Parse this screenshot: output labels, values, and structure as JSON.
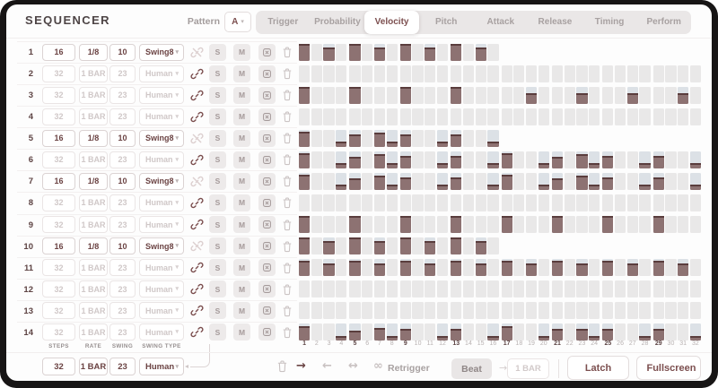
{
  "header": {
    "title": "SEQUENCER",
    "pattern_label": "Pattern",
    "pattern_value": "A",
    "tabs": [
      {
        "label": "Trigger",
        "selected": false
      },
      {
        "label": "Probability",
        "selected": false
      },
      {
        "label": "Velocity",
        "selected": true
      },
      {
        "label": "Pitch",
        "selected": false
      },
      {
        "label": "Attack",
        "selected": false
      },
      {
        "label": "Release",
        "selected": false
      },
      {
        "label": "Timing",
        "selected": false
      },
      {
        "label": "Perform",
        "selected": false
      }
    ]
  },
  "row_controls": {
    "solo": "S",
    "mute": "M"
  },
  "rows": [
    {
      "num": "1",
      "steps": "16",
      "rate": "1/8",
      "swing": "10",
      "swing_type": "Swing8",
      "linked": false
    },
    {
      "num": "2",
      "steps": "32",
      "rate": "1 BAR",
      "swing": "23",
      "swing_type": "Human",
      "linked": true
    },
    {
      "num": "3",
      "steps": "32",
      "rate": "1 BAR",
      "swing": "23",
      "swing_type": "Human",
      "linked": true
    },
    {
      "num": "4",
      "steps": "32",
      "rate": "1 BAR",
      "swing": "23",
      "swing_type": "Human",
      "linked": true
    },
    {
      "num": "5",
      "steps": "16",
      "rate": "1/8",
      "swing": "10",
      "swing_type": "Swing8",
      "linked": false
    },
    {
      "num": "6",
      "steps": "32",
      "rate": "1 BAR",
      "swing": "23",
      "swing_type": "Human",
      "linked": true
    },
    {
      "num": "7",
      "steps": "16",
      "rate": "1/8",
      "swing": "10",
      "swing_type": "Swing8",
      "linked": false
    },
    {
      "num": "8",
      "steps": "32",
      "rate": "1 BAR",
      "swing": "23",
      "swing_type": "Human",
      "linked": true
    },
    {
      "num": "9",
      "steps": "32",
      "rate": "1 BAR",
      "swing": "23",
      "swing_type": "Human",
      "linked": true
    },
    {
      "num": "10",
      "steps": "16",
      "rate": "1/8",
      "swing": "10",
      "swing_type": "Swing8",
      "linked": false
    },
    {
      "num": "11",
      "steps": "32",
      "rate": "1 BAR",
      "swing": "23",
      "swing_type": "Human",
      "linked": true
    },
    {
      "num": "12",
      "steps": "32",
      "rate": "1 BAR",
      "swing": "23",
      "swing_type": "Human",
      "linked": true
    },
    {
      "num": "13",
      "steps": "32",
      "rate": "1 BAR",
      "swing": "23",
      "swing_type": "Human",
      "linked": true
    },
    {
      "num": "14",
      "steps": "32",
      "rate": "1 BAR",
      "swing": "23",
      "swing_type": "Human",
      "linked": true
    }
  ],
  "grid": {
    "step_numbers": [
      1,
      2,
      3,
      4,
      5,
      6,
      7,
      8,
      9,
      10,
      11,
      12,
      13,
      14,
      15,
      16,
      17,
      18,
      19,
      20,
      21,
      22,
      23,
      24,
      25,
      26,
      27,
      28,
      29,
      30,
      31,
      32
    ],
    "bold_steps": [
      1,
      5,
      9,
      13,
      17,
      21,
      25,
      29
    ],
    "rows": [
      {
        "velocities": [
          100,
          0,
          78,
          0,
          100,
          0,
          78,
          0,
          100,
          0,
          78,
          0,
          100,
          0,
          78,
          0
        ]
      },
      {
        "velocities": [
          0,
          0,
          0,
          0,
          0,
          0,
          0,
          0,
          0,
          0,
          0,
          0,
          0,
          0,
          0,
          0,
          0,
          0,
          0,
          0,
          0,
          0,
          0,
          0,
          0,
          0,
          0,
          0,
          0,
          0,
          0,
          0
        ]
      },
      {
        "velocities": [
          100,
          0,
          0,
          0,
          100,
          0,
          0,
          0,
          100,
          0,
          0,
          0,
          100,
          0,
          0,
          0,
          0,
          0,
          62,
          0,
          0,
          0,
          62,
          0,
          0,
          0,
          62,
          0,
          0,
          0,
          62,
          0
        ]
      },
      {
        "velocities": [
          0,
          0,
          0,
          0,
          0,
          0,
          0,
          0,
          0,
          0,
          0,
          0,
          0,
          0,
          0,
          0,
          0,
          0,
          0,
          0,
          0,
          0,
          0,
          0,
          0,
          0,
          0,
          0,
          0,
          0,
          0,
          0
        ]
      },
      {
        "velocities": [
          88,
          0,
          0,
          30,
          70,
          0,
          85,
          30,
          75,
          0,
          0,
          30,
          75,
          0,
          0,
          30
        ]
      },
      {
        "velocities": [
          88,
          0,
          0,
          30,
          70,
          0,
          85,
          30,
          75,
          0,
          0,
          30,
          75,
          0,
          0,
          30,
          88,
          0,
          0,
          30,
          70,
          0,
          85,
          30,
          75,
          0,
          0,
          30,
          75,
          0,
          0,
          30
        ]
      },
      {
        "velocities": [
          88,
          0,
          0,
          30,
          70,
          0,
          85,
          30,
          75,
          0,
          0,
          30,
          75,
          0,
          0,
          30,
          88,
          0,
          0,
          30,
          70,
          0,
          85,
          30,
          75,
          0,
          0,
          30,
          75,
          0,
          0,
          30
        ]
      },
      {
        "velocities": [
          0,
          0,
          0,
          0,
          0,
          0,
          0,
          0,
          0,
          0,
          0,
          0,
          0,
          0,
          0,
          0,
          0,
          0,
          0,
          0,
          0,
          0,
          0,
          0,
          0,
          0,
          0,
          0,
          0,
          0,
          0,
          0
        ]
      },
      {
        "velocities": [
          100,
          0,
          0,
          0,
          100,
          0,
          0,
          0,
          100,
          0,
          0,
          0,
          100,
          0,
          0,
          0,
          100,
          0,
          0,
          0,
          100,
          0,
          0,
          0,
          100,
          0,
          0,
          0,
          100,
          0,
          0,
          0
        ]
      },
      {
        "velocities": [
          100,
          0,
          78,
          0,
          100,
          0,
          78,
          0,
          100,
          0,
          78,
          0,
          100,
          0,
          78,
          0
        ]
      },
      {
        "velocities": [
          90,
          0,
          72,
          0,
          90,
          0,
          72,
          0,
          90,
          0,
          72,
          0,
          90,
          0,
          72,
          0,
          90,
          0,
          72,
          0,
          90,
          0,
          72,
          0,
          90,
          0,
          72,
          0,
          90,
          0,
          72,
          0
        ]
      },
      {
        "velocities": [
          0,
          0,
          0,
          0,
          0,
          0,
          0,
          0,
          0,
          0,
          0,
          0,
          0,
          0,
          0,
          0,
          0,
          0,
          0,
          0,
          0,
          0,
          0,
          0,
          0,
          0,
          0,
          0,
          0,
          0,
          0,
          0
        ]
      },
      {
        "velocities": [
          0,
          0,
          0,
          0,
          0,
          0,
          0,
          0,
          0,
          0,
          0,
          0,
          0,
          0,
          0,
          0,
          0,
          0,
          0,
          0,
          0,
          0,
          0,
          0,
          0,
          0,
          0,
          0,
          0,
          0,
          0,
          0
        ]
      },
      {
        "velocities": [
          85,
          0,
          0,
          28,
          60,
          0,
          75,
          28,
          70,
          0,
          0,
          28,
          70,
          0,
          0,
          28,
          85,
          0,
          0,
          28,
          70,
          0,
          72,
          28,
          70,
          0,
          0,
          28,
          70,
          0,
          0,
          28
        ]
      }
    ]
  },
  "master": {
    "labels": {
      "steps": "STEPS",
      "rate": "RATE",
      "swing": "SWING",
      "swing_type": "SWING TYPE"
    },
    "steps": "32",
    "rate": "1 BAR",
    "swing": "23",
    "swing_type": "Human"
  },
  "footer": {
    "retrigger_label": "Retrigger",
    "beat_button": "Beat",
    "retrigger_value": "1 BAR",
    "latch_button": "Latch",
    "fullscreen_button": "Fullscreen"
  },
  "icons": {
    "chevron_down": "▾",
    "arrow_forward": "→",
    "arrow_back": "←",
    "arrow_both": "↔",
    "infinity": "∞",
    "retrigger_arrow": "→"
  },
  "colors": {
    "accent": "#7c4f4f",
    "bar_fill": "#8d7272",
    "bar_edge": "#5a3d3d",
    "cell_empty": "#e9e8e8",
    "cell_active": "#dce1e6"
  }
}
